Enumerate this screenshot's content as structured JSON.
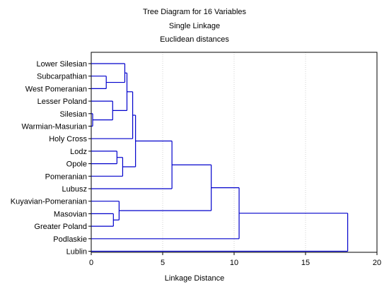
{
  "chart_data": {
    "type": "dendrogram",
    "title": "Tree Diagram for 16  Variables",
    "subtitle_1": "Single Linkage",
    "subtitle_2": "Euclidean distances",
    "xlabel": "Linkage Distance",
    "xlim": [
      0,
      20
    ],
    "xticks": [
      "0",
      "5",
      "10",
      "15",
      "20"
    ],
    "grid": true,
    "line_color": "#0000cc",
    "leaves": [
      "Lower Silesian",
      "Subcarpathian",
      "West Pomeranian",
      "Lesser Poland",
      "Silesian",
      "Warmian-Masurian",
      "Holy Cross",
      "Lodz",
      "Opole",
      "Pomeranian",
      "Lubusz",
      "Kuyavian-Pomeranian",
      "Masovian",
      "Greater Poland",
      "Podlaskie",
      "Lublin"
    ],
    "merges": [
      {
        "a": "Silesian",
        "b": "Warmian-Masurian",
        "distance": 0.1
      },
      {
        "a": "Subcarpathian",
        "b": "West Pomeranian",
        "distance": 1.05
      },
      {
        "a": "Lesser Poland",
        "b": "Silesian + Warmian-Masurian",
        "distance": 1.5
      },
      {
        "a": "Masovian",
        "b": "Greater Poland",
        "distance": 1.55
      },
      {
        "a": "Lodz",
        "b": "Opole",
        "distance": 1.8
      },
      {
        "a": "Kuyavian-Pomeranian",
        "b": "Masovian + Greater Poland",
        "distance": 1.95
      },
      {
        "a": "Lodz + Opole",
        "b": "Pomeranian",
        "distance": 2.2
      },
      {
        "a": "Lower Silesian",
        "b": "Subcarpathian + West Pomeranian",
        "distance": 2.35
      },
      {
        "a": "Lower Silesian group",
        "b": "Lesser Poland group",
        "distance": 2.5
      },
      {
        "a": "Lower Silesian - Warmian-Masurian",
        "b": "Holy Cross",
        "distance": 2.9
      },
      {
        "a": "Lower Silesian - Holy Cross",
        "b": "Lodz group",
        "distance": 3.1
      },
      {
        "a": "Lower Silesian - Pomeranian",
        "b": "Lubusz",
        "distance": 5.65
      },
      {
        "a": "Lower Silesian - Lubusz",
        "b": "Kuyavian-Pomeranian group",
        "distance": 8.4
      },
      {
        "a": "Lower Silesian - Greater Poland",
        "b": "Podlaskie",
        "distance": 10.35
      },
      {
        "a": "Lower Silesian - Podlaskie",
        "b": "Lublin",
        "distance": 17.95
      }
    ]
  }
}
